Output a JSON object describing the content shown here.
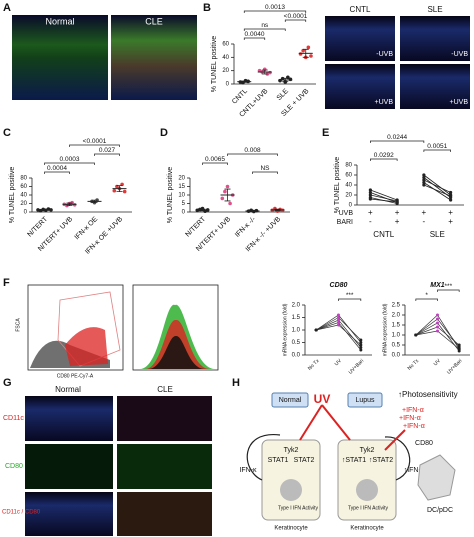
{
  "panels": {
    "labels": [
      "A",
      "B",
      "C",
      "D",
      "E",
      "F",
      "G",
      "H"
    ],
    "A": {
      "columns": [
        "Normal",
        "CLE"
      ]
    },
    "B_images": {
      "columns": [
        "CNTL",
        "SLE"
      ],
      "rows": [
        "-UVB",
        "+UVB"
      ]
    },
    "F_flow": {
      "y_label": "FSCA",
      "x_label": "CD80 PE-Cy7-A"
    },
    "G": {
      "columns": [
        "Normal",
        "CLE"
      ],
      "rows": [
        "CD11c",
        "CD80",
        "CD11c / CD80"
      ]
    },
    "H": {
      "normal": "Normal",
      "lupus": "Lupus",
      "uv": "UV",
      "photosensitivity": "↑Photosensitivity",
      "ifna": [
        "+IFN-α",
        "+IFN-α",
        "+IFN-α"
      ],
      "cd80": "CD80",
      "tyk2": [
        "Tyk2",
        "Tyk2"
      ],
      "stat_normal": [
        "STAT1",
        "STAT2"
      ],
      "stat_lupus": [
        "↑STAT1",
        "↑STAT2"
      ],
      "ifnk": [
        "IFN-κ",
        "↑IFN-κ"
      ],
      "type1": [
        "Type I IFN Activity",
        "Type I IFN Activity"
      ],
      "keratinocyte": [
        "Keratinocyte",
        "Keratinocyte"
      ],
      "dc": "DC/pDC"
    }
  },
  "chart_data": [
    {
      "type": "dot",
      "ylabel": "% TUNEL positive",
      "categories": [
        "CNTL",
        "CNTL+UVB",
        "SLE",
        "SLE + UVB"
      ],
      "colors": [
        "#222",
        "#e0508a",
        "#222",
        "#e03a3a"
      ],
      "values": [
        [
          3,
          2,
          5,
          4
        ],
        [
          20,
          18,
          22,
          15,
          17
        ],
        [
          5,
          8,
          3,
          10,
          7
        ],
        [
          45,
          50,
          40,
          55,
          42
        ]
      ],
      "means": [
        3.5,
        18,
        6,
        46
      ],
      "errors": [
        1,
        3,
        2.5,
        6
      ],
      "ylim": [
        0,
        60
      ],
      "yticks": [
        0,
        20,
        40,
        60
      ],
      "comparisons": [
        {
          "between": [
            0,
            1
          ],
          "label": "0.0040"
        },
        {
          "between": [
            0,
            2
          ],
          "label": "ns"
        },
        {
          "between": [
            2,
            3
          ],
          "label": "<0.0001"
        },
        {
          "between": [
            0,
            3
          ],
          "label": "0.0013"
        }
      ]
    },
    {
      "type": "dot",
      "ylabel": "% TUNEL positive",
      "categories": [
        "N/TERT",
        "N/TERT+ UVB",
        "IFN-κ OE",
        "IFN-κ OE +UVB"
      ],
      "colors": [
        "#222",
        "#e0508a",
        "#555",
        "#e03a3a"
      ],
      "values": [
        [
          5,
          3,
          6,
          4,
          7,
          5
        ],
        [
          18,
          15,
          20,
          22,
          17
        ],
        [
          25,
          22,
          28
        ],
        [
          50,
          60,
          55,
          65,
          48
        ]
      ],
      "means": [
        5,
        18,
        25,
        55
      ],
      "errors": [
        1.5,
        3,
        3,
        7
      ],
      "ylim": [
        0,
        80
      ],
      "yticks": [
        0,
        20,
        40,
        60,
        80
      ],
      "comparisons": [
        {
          "between": [
            0,
            1
          ],
          "label": "0.0004"
        },
        {
          "between": [
            0,
            2
          ],
          "label": "0.0003"
        },
        {
          "between": [
            2,
            3
          ],
          "label": "0.027"
        },
        {
          "between": [
            1,
            3
          ],
          "label": "<0.0001"
        }
      ]
    },
    {
      "type": "dot",
      "ylabel": "% TUNEL positive",
      "categories": [
        "N/TERT",
        "N/TERT+ UVB",
        "IFN-κ -/-",
        "IFN-κ -/- +UVB"
      ],
      "colors": [
        "#222",
        "#e0508a",
        "#222",
        "#e03a3a"
      ],
      "values": [
        [
          1,
          1.5,
          2,
          0.5,
          1.2
        ],
        [
          8,
          12,
          15,
          5,
          10
        ],
        [
          0.5,
          1,
          0.3,
          0.8
        ],
        [
          1,
          2,
          0.5,
          1.5,
          1
        ]
      ],
      "means": [
        1.2,
        10,
        0.6,
        1.2
      ],
      "errors": [
        0.5,
        3.5,
        0.3,
        0.5
      ],
      "ylim": [
        0,
        20
      ],
      "yticks": [
        0,
        5,
        10,
        15,
        20
      ],
      "comparisons": [
        {
          "between": [
            2,
            3
          ],
          "label": "NS"
        },
        {
          "between": [
            0,
            1
          ],
          "label": "0.0065"
        },
        {
          "between": [
            1,
            3
          ],
          "label": "0.008"
        }
      ]
    },
    {
      "type": "paired",
      "ylabel": "% TUNEL positive",
      "ylim": [
        0,
        80
      ],
      "yticks": [
        0,
        20,
        40,
        60,
        80
      ],
      "groups": [
        {
          "name": "CNTL",
          "values": [
            [
              30,
              10
            ],
            [
              25,
              5
            ],
            [
              20,
              8
            ],
            [
              15,
              3
            ],
            [
              12,
              6
            ]
          ]
        },
        {
          "name": "SLE",
          "values": [
            [
              60,
              20
            ],
            [
              55,
              15
            ],
            [
              50,
              25
            ],
            [
              45,
              10
            ],
            [
              40,
              18
            ]
          ]
        }
      ],
      "rows": [
        {
          "name": "UVB",
          "marks": [
            "+",
            "+",
            "+",
            "+"
          ]
        },
        {
          "name": "BARI",
          "marks": [
            "-",
            "+",
            "-",
            "+"
          ]
        }
      ],
      "comparisons": [
        {
          "between": [
            0,
            1
          ],
          "label": "0.0292"
        },
        {
          "between": [
            2,
            3
          ],
          "label": "0.0051"
        },
        {
          "between": [
            0,
            2
          ],
          "label": "0.0244"
        }
      ]
    },
    {
      "type": "line",
      "title": "CD80",
      "ylabel": "mRNA expression (fold)",
      "categories": [
        "No Tx",
        "UV",
        "UV+Bari"
      ],
      "point_colors": [
        "#222",
        "#c040c0",
        "#222"
      ],
      "lines": [
        [
          1,
          1.6,
          0.5
        ],
        [
          1,
          1.4,
          0.3
        ],
        [
          1,
          1.2,
          0.4
        ],
        [
          1,
          1.5,
          0.6
        ],
        [
          1,
          1.3,
          0.2
        ]
      ],
      "ylim": [
        0,
        2
      ],
      "yticks": [
        {
          "value": 0,
          "label": "0.0"
        },
        0.5,
        {
          "value": 1,
          "label": "1.0"
        },
        1.5,
        {
          "value": 2,
          "label": "2.0"
        }
      ],
      "comparisons": [
        {
          "between": [
            1,
            2
          ],
          "label": "***"
        }
      ]
    },
    {
      "type": "line",
      "title": "MX1",
      "ylabel": "mRNA expression (fold)",
      "categories": [
        "No Tx",
        "UV",
        "UV+Bari"
      ],
      "point_colors": [
        "#222",
        "#c040c0",
        "#222"
      ],
      "lines": [
        [
          1,
          2,
          0.3
        ],
        [
          1,
          1.6,
          0.2
        ],
        [
          1,
          1.4,
          0.5
        ],
        [
          1,
          1.8,
          0.4
        ],
        [
          1,
          1.2,
          0.3
        ]
      ],
      "ylim": [
        0,
        2.5
      ],
      "yticks": [
        {
          "value": 0,
          "label": "0.0"
        },
        0.5,
        {
          "value": 1,
          "label": "1.0"
        },
        1.5,
        {
          "value": 2,
          "label": "2.0"
        },
        2.5
      ],
      "comparisons": [
        {
          "between": [
            0,
            1
          ],
          "label": "*"
        },
        {
          "between": [
            1,
            2
          ],
          "label": "***"
        }
      ]
    }
  ]
}
